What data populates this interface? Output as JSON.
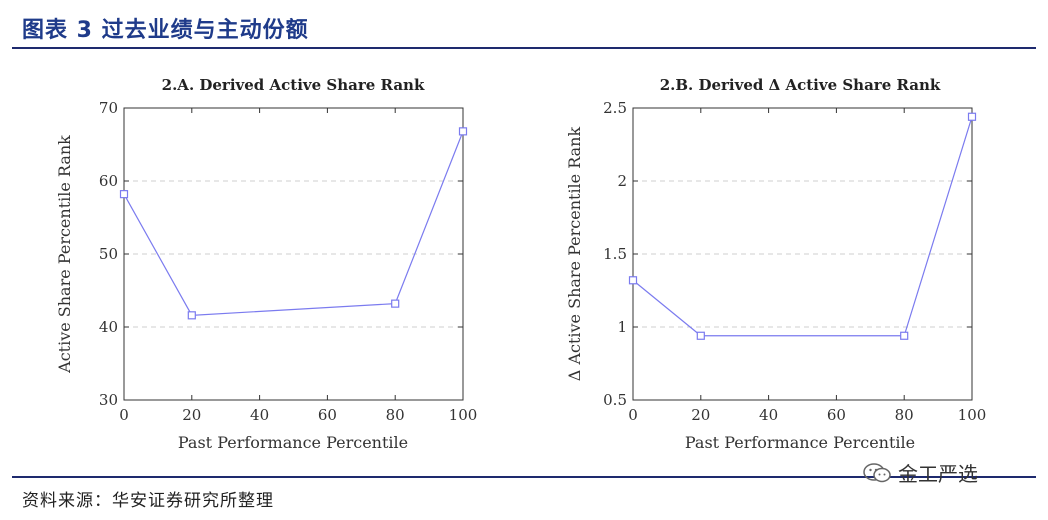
{
  "header": {
    "figure_title": "图表 3  过去业绩与主动份额"
  },
  "footer": {
    "source": "资料来源：华安证券研究所整理",
    "watermark": "金工严选"
  },
  "colors": {
    "series": "#7b7bef",
    "rule": "#1e2a6e",
    "title": "#1f3b8a"
  },
  "chart_data": [
    {
      "type": "line",
      "title": "2.A. Derived Active Share Rank",
      "xlabel": "Past Performance Percentile",
      "ylabel": "Active Share Percentile Rank",
      "xlim": [
        0,
        100
      ],
      "ylim": [
        30,
        70
      ],
      "xticks": [
        0,
        20,
        40,
        60,
        80,
        100
      ],
      "yticks": [
        30,
        40,
        50,
        60,
        70
      ],
      "grid": "horizontal-dashed",
      "marker": "square",
      "series": [
        {
          "x": [
            0,
            20,
            80,
            100
          ],
          "y": [
            58.2,
            41.6,
            43.2,
            66.8
          ]
        }
      ]
    },
    {
      "type": "line",
      "title": "2.B. Derived Δ Active Share Rank",
      "xlabel": "Past Performance Percentile",
      "ylabel": "Δ Active Share Percentile Rank",
      "xlim": [
        0,
        100
      ],
      "ylim": [
        0.5,
        2.5
      ],
      "xticks": [
        0,
        20,
        40,
        60,
        80,
        100
      ],
      "yticks": [
        0.5,
        1,
        1.5,
        2,
        2.5
      ],
      "grid": "horizontal-dashed",
      "marker": "square",
      "series": [
        {
          "x": [
            0,
            20,
            80,
            100
          ],
          "y": [
            1.32,
            0.94,
            0.94,
            2.44
          ]
        }
      ]
    }
  ]
}
